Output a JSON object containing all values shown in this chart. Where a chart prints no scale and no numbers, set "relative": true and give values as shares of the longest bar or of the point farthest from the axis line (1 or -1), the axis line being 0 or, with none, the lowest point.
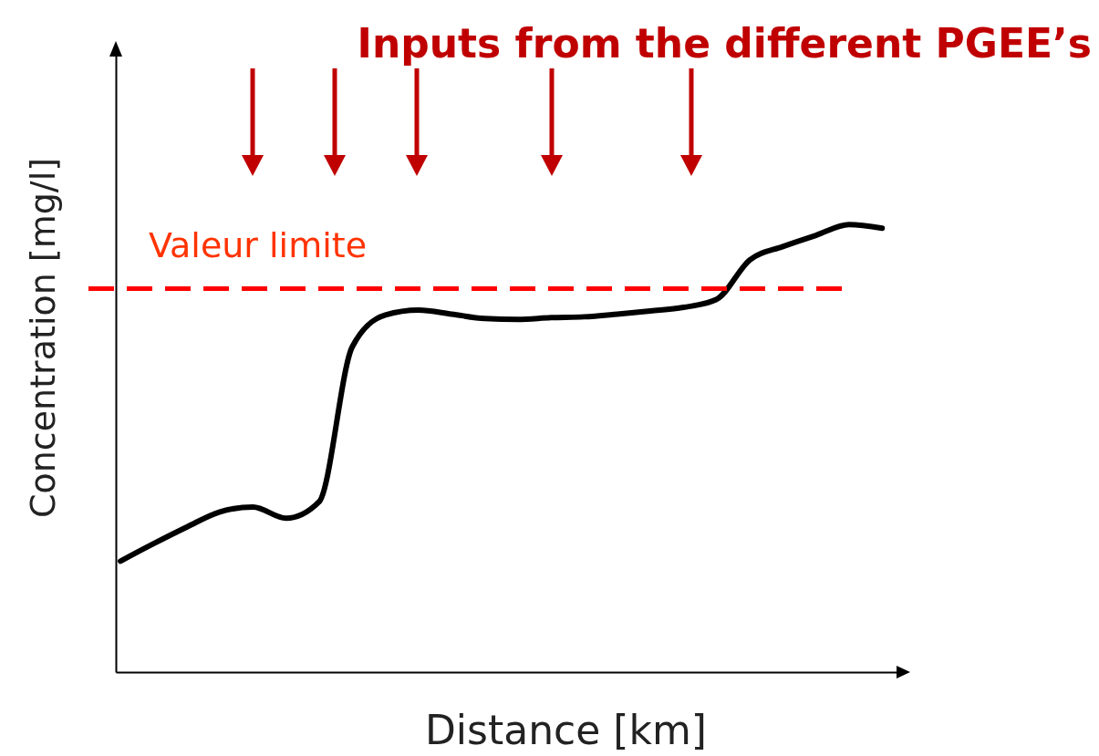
{
  "chart_data": {
    "type": "line",
    "title": "Inputs from the different PGEE’s",
    "xlabel": "Distance [km]",
    "ylabel": "Concentration [mg/l]",
    "relative": true,
    "color": "#000000",
    "categories": [
      null,
      null,
      null,
      null,
      null,
      null,
      null,
      null,
      null,
      null,
      null,
      null,
      null,
      null,
      null,
      null,
      null,
      null,
      null,
      null,
      null,
      null,
      null,
      null
    ],
    "values": [
      0.248,
      0.287,
      0.324,
      0.358,
      0.369,
      0.344,
      0.381,
      0.727,
      0.798,
      0.809,
      0.8,
      0.79,
      0.788,
      0.792,
      0.794,
      0.8,
      0.807,
      0.815,
      0.833,
      0.921,
      0.951,
      0.976,
      1,
      0.992
    ],
    "ref_lines": [
      {
        "axis": "y",
        "value": 0.857,
        "label": "Valeur limite",
        "color": "#ff0000",
        "line_style": "dashed"
      }
    ]
  }
}
